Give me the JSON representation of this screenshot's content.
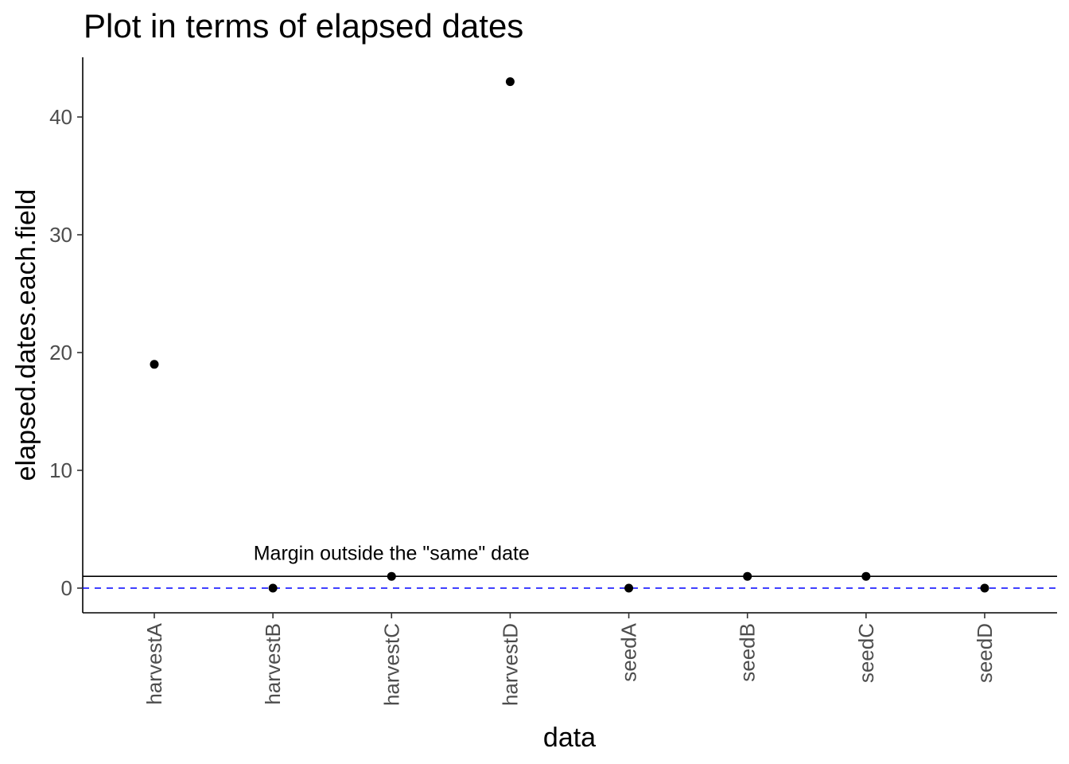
{
  "chart_data": {
    "type": "scatter",
    "title": "Plot in terms of elapsed dates",
    "xlabel": "data",
    "ylabel": "elapsed.dates.each.field",
    "categories": [
      "harvestA",
      "harvestB",
      "harvestC",
      "harvestD",
      "seedA",
      "seedB",
      "seedC",
      "seedD"
    ],
    "values": [
      19,
      0,
      1,
      43,
      0,
      1,
      1,
      0
    ],
    "ylim": [
      -2,
      45
    ],
    "yticks": [
      0,
      10,
      20,
      30,
      40
    ],
    "ytick_labels": [
      "0",
      "10",
      "20",
      "30",
      "40"
    ],
    "grid": false,
    "point_color": "#000000",
    "reference_lines": [
      {
        "y": 1,
        "style": "solid",
        "color": "#000000"
      },
      {
        "y": 0,
        "style": "dashed",
        "color": "#0000ff"
      }
    ],
    "annotations": [
      {
        "text": "Margin outside the \"same\" date",
        "x": "harvestC",
        "y": 3
      }
    ]
  }
}
